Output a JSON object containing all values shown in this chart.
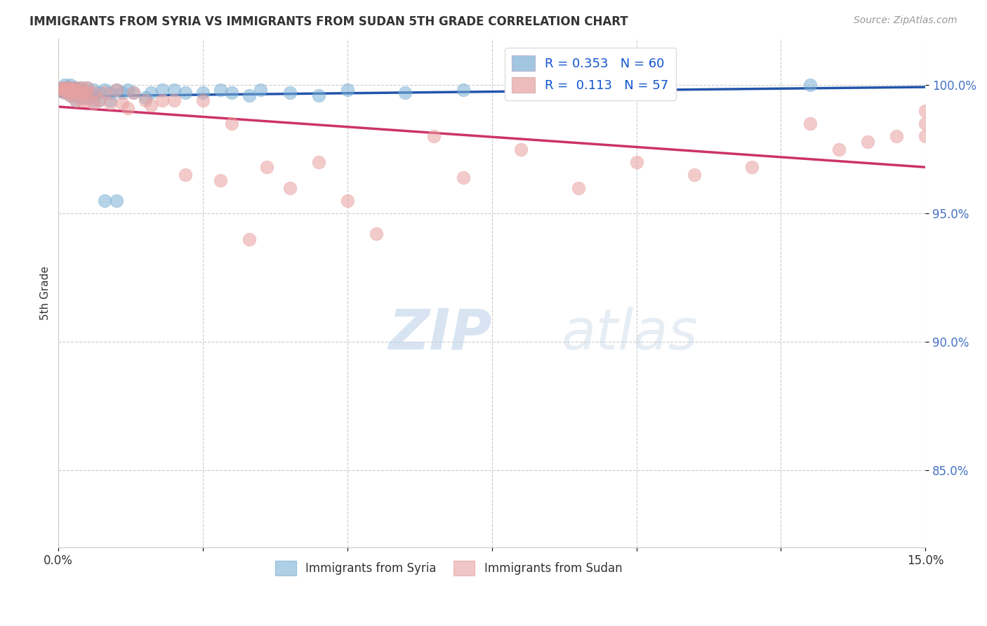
{
  "title": "IMMIGRANTS FROM SYRIA VS IMMIGRANTS FROM SUDAN 5TH GRADE CORRELATION CHART",
  "source": "Source: ZipAtlas.com",
  "ylabel": "5th Grade",
  "xlim": [
    0.0,
    0.15
  ],
  "ylim": [
    0.82,
    1.018
  ],
  "yticks": [
    0.85,
    0.9,
    0.95,
    1.0
  ],
  "yticklabels": [
    "85.0%",
    "90.0%",
    "95.0%",
    "100.0%"
  ],
  "syria_R": 0.353,
  "syria_N": 60,
  "sudan_R": 0.113,
  "sudan_N": 57,
  "syria_color": "#7bafd4",
  "sudan_color": "#e8a0a0",
  "syria_line_color": "#2255aa",
  "sudan_line_color": "#cc3366",
  "background_color": "#ffffff",
  "grid_color": "#cccccc",
  "syria_x": [
    0.0005,
    0.0008,
    0.001,
    0.001,
    0.001,
    0.001,
    0.0015,
    0.002,
    0.002,
    0.002,
    0.002,
    0.002,
    0.002,
    0.002,
    0.002,
    0.003,
    0.003,
    0.003,
    0.003,
    0.003,
    0.003,
    0.003,
    0.004,
    0.004,
    0.004,
    0.004,
    0.005,
    0.005,
    0.005,
    0.006,
    0.006,
    0.006,
    0.007,
    0.007,
    0.008,
    0.008,
    0.009,
    0.009,
    0.01,
    0.01,
    0.011,
    0.012,
    0.013,
    0.015,
    0.016,
    0.018,
    0.02,
    0.022,
    0.025,
    0.028,
    0.03,
    0.033,
    0.035,
    0.04,
    0.045,
    0.05,
    0.06,
    0.07,
    0.09,
    0.13
  ],
  "syria_y": [
    0.998,
    0.999,
    0.997,
    0.999,
    1.0,
    0.998,
    0.999,
    0.999,
    0.998,
    0.997,
    1.0,
    0.999,
    0.998,
    0.997,
    0.996,
    0.999,
    0.998,
    0.997,
    0.999,
    0.998,
    0.996,
    0.994,
    0.999,
    0.998,
    0.997,
    0.995,
    0.999,
    0.997,
    0.995,
    0.998,
    0.996,
    0.994,
    0.997,
    0.994,
    0.998,
    0.955,
    0.997,
    0.994,
    0.998,
    0.955,
    0.997,
    0.998,
    0.997,
    0.995,
    0.997,
    0.998,
    0.998,
    0.997,
    0.997,
    0.998,
    0.997,
    0.996,
    0.998,
    0.997,
    0.996,
    0.998,
    0.997,
    0.998,
    0.998,
    1.0
  ],
  "sudan_x": [
    0.0005,
    0.0008,
    0.001,
    0.001,
    0.001,
    0.0015,
    0.002,
    0.002,
    0.002,
    0.002,
    0.003,
    0.003,
    0.003,
    0.003,
    0.004,
    0.004,
    0.004,
    0.005,
    0.005,
    0.005,
    0.006,
    0.006,
    0.007,
    0.008,
    0.009,
    0.01,
    0.011,
    0.012,
    0.013,
    0.015,
    0.016,
    0.018,
    0.02,
    0.022,
    0.025,
    0.028,
    0.03,
    0.033,
    0.036,
    0.04,
    0.045,
    0.05,
    0.055,
    0.065,
    0.07,
    0.08,
    0.09,
    0.1,
    0.11,
    0.12,
    0.13,
    0.135,
    0.14,
    0.145,
    0.15,
    0.15,
    0.15
  ],
  "sudan_y": [
    0.999,
    0.998,
    0.999,
    0.998,
    0.997,
    0.999,
    0.999,
    0.998,
    0.997,
    0.996,
    0.999,
    0.998,
    0.997,
    0.994,
    0.999,
    0.997,
    0.994,
    0.999,
    0.997,
    0.994,
    0.997,
    0.993,
    0.994,
    0.997,
    0.993,
    0.998,
    0.993,
    0.991,
    0.997,
    0.994,
    0.992,
    0.994,
    0.994,
    0.965,
    0.994,
    0.963,
    0.985,
    0.94,
    0.968,
    0.96,
    0.97,
    0.955,
    0.942,
    0.98,
    0.964,
    0.975,
    0.96,
    0.97,
    0.965,
    0.968,
    0.985,
    0.975,
    0.978,
    0.98,
    0.99,
    0.985,
    0.98
  ]
}
